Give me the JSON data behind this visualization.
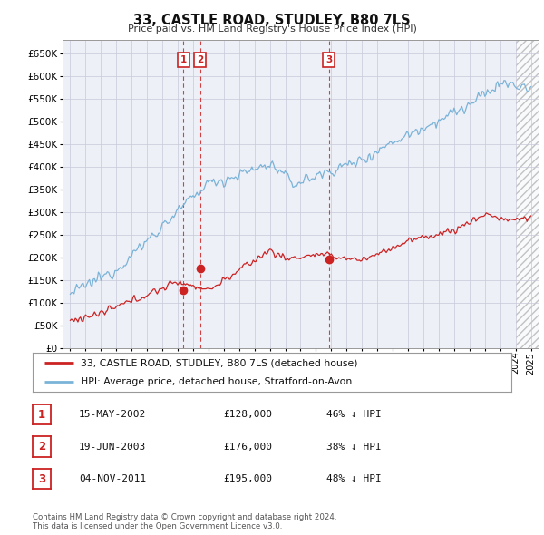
{
  "title": "33, CASTLE ROAD, STUDLEY, B80 7LS",
  "subtitle": "Price paid vs. HM Land Registry's House Price Index (HPI)",
  "legend_line1": "33, CASTLE ROAD, STUDLEY, B80 7LS (detached house)",
  "legend_line2": "HPI: Average price, detached house, Stratford-on-Avon",
  "transactions": [
    {
      "num": 1,
      "date": "15-MAY-2002",
      "price": "£128,000",
      "pct": "46% ↓ HPI",
      "year": 2002.37,
      "price_val": 128000
    },
    {
      "num": 2,
      "date": "19-JUN-2003",
      "price": "£176,000",
      "pct": "38% ↓ HPI",
      "year": 2003.46,
      "price_val": 176000
    },
    {
      "num": 3,
      "date": "04-NOV-2011",
      "price": "£195,000",
      "pct": "48% ↓ HPI",
      "year": 2011.84,
      "price_val": 195000
    }
  ],
  "copyright": "Contains HM Land Registry data © Crown copyright and database right 2024.\nThis data is licensed under the Open Government Licence v3.0.",
  "hpi_color": "#7ab3d8",
  "price_color": "#cc2222",
  "marker_box_color": "#cc2222",
  "grid_color": "#c8c8d8",
  "bg_color": "#ffffff",
  "plot_bg": "#eef0f8",
  "ylim": [
    0,
    680000
  ],
  "yticks": [
    0,
    50000,
    100000,
    150000,
    200000,
    250000,
    300000,
    350000,
    400000,
    450000,
    500000,
    550000,
    600000,
    650000
  ],
  "xlim_start": 1994.5,
  "xlim_end": 2025.5,
  "hatch_start": 2024.0
}
